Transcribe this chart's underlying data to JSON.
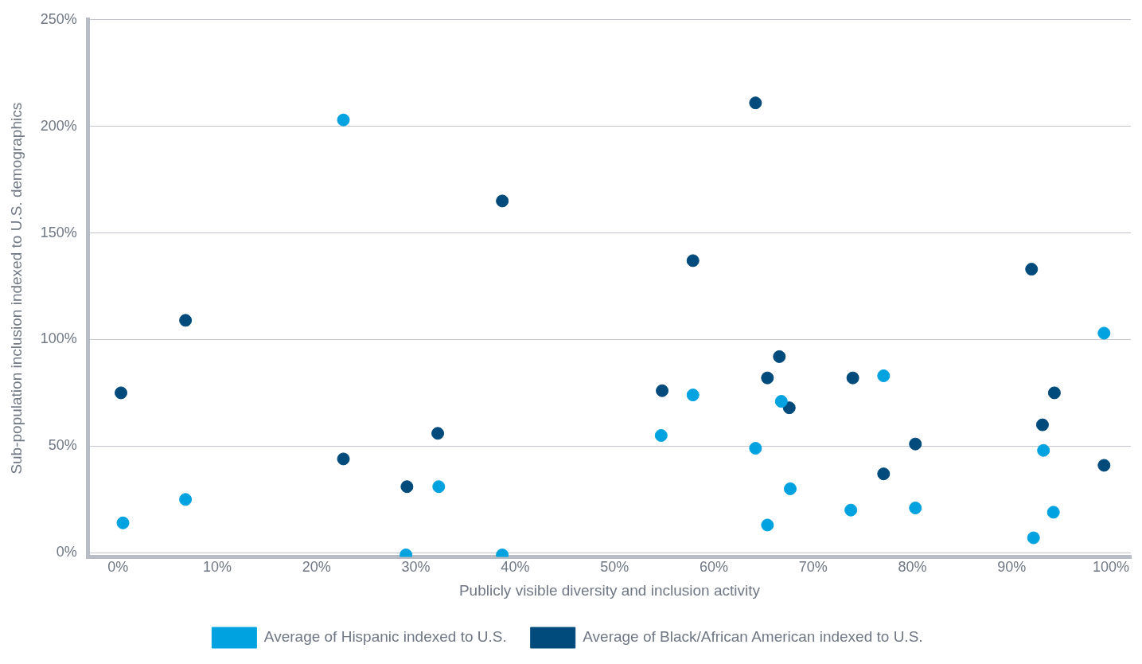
{
  "chart_data": {
    "type": "scatter",
    "xlabel": "Publicly visible diversity and inclusion activity",
    "ylabel": "Sub-population inclusion indexed to U.S. demographics",
    "xlim": [
      -3,
      102
    ],
    "ylim": [
      -2,
      250
    ],
    "xticks": [
      {
        "value": 0,
        "label": "0%"
      },
      {
        "value": 10,
        "label": "10%"
      },
      {
        "value": 20,
        "label": "20%"
      },
      {
        "value": 30,
        "label": "30%"
      },
      {
        "value": 40,
        "label": "40%"
      },
      {
        "value": 50,
        "label": "50%"
      },
      {
        "value": 60,
        "label": "60%"
      },
      {
        "value": 70,
        "label": "70%"
      },
      {
        "value": 80,
        "label": "80%"
      },
      {
        "value": 90,
        "label": "90%"
      },
      {
        "value": 100,
        "label": "100%"
      }
    ],
    "yticks": [
      {
        "value": 0,
        "label": "0%"
      },
      {
        "value": 50,
        "label": "50%"
      },
      {
        "value": 100,
        "label": "100%"
      },
      {
        "value": 150,
        "label": "150%"
      },
      {
        "value": 200,
        "label": "200%"
      },
      {
        "value": 250,
        "label": "250%"
      }
    ],
    "grid": "y",
    "legend": "bottom",
    "marker": "circle",
    "series": [
      {
        "name": "Average of Hispanic indexed to U.S.",
        "color": "#00a3e0",
        "x": [
          0.5,
          6.8,
          22.7,
          29,
          32.3,
          38.7,
          54.7,
          57.9,
          64.2,
          65.4,
          66.8,
          67.7,
          73.8,
          77.1,
          80.3,
          92.2,
          93.2,
          94.2,
          99.3
        ],
        "values": [
          14,
          25,
          203,
          -1,
          31,
          -1,
          55,
          74,
          49,
          13,
          71,
          30,
          20,
          83,
          21,
          7,
          48,
          19,
          103
        ]
      },
      {
        "name": "Average of Black/African American indexed to U.S.",
        "color": "#004b7c",
        "x": [
          0.3,
          6.8,
          22.7,
          29.1,
          32.2,
          38.7,
          54.8,
          57.9,
          64.2,
          65.4,
          66.6,
          67.6,
          74,
          77.1,
          80.3,
          92,
          93.1,
          94.3,
          99.3
        ],
        "values": [
          75,
          109,
          44,
          31,
          56,
          165,
          76,
          137,
          211,
          82,
          92,
          68,
          82,
          37,
          51,
          133,
          60,
          75,
          41
        ]
      }
    ]
  }
}
